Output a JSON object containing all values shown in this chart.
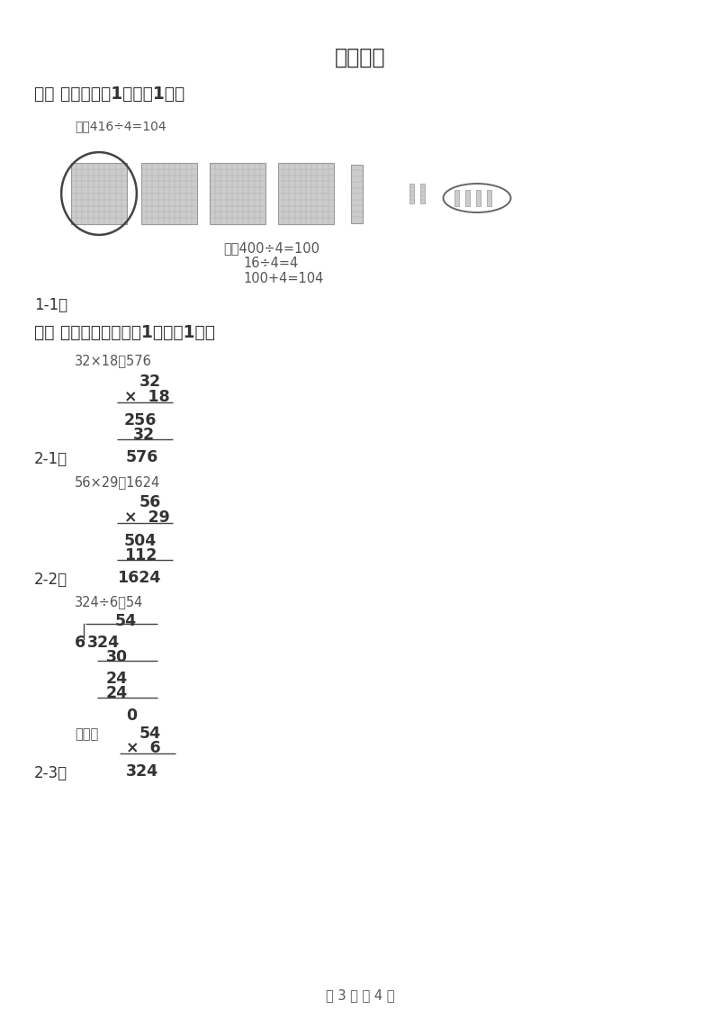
{
  "title": "参考答案",
  "bg_color": "#ffffff",
  "section1_header": "一、 连线。（共1题；共1分）",
  "section1_solution_label": "解：416÷4=104",
  "section1_calc_line1": "想：400÷4=100",
  "section1_calc_line2": "16÷4=4",
  "section1_calc_line3": "100+4=104",
  "section1_label": "1-1、",
  "section2_header": "二、 用竖式计算。（共1题；共1分）",
  "problem1_eq": "32×18＝576",
  "problem1_label": "2-1、",
  "problem2_eq": "56×29＝1624",
  "problem2_label": "2-2、",
  "problem3_eq": "324÷6＝54",
  "check_label": "验算：",
  "problem3_label": "2-3、",
  "footer": "第 3 页 共 4 页",
  "text_color": "#333333",
  "gray_color": "#888888",
  "light_text": "#555555"
}
